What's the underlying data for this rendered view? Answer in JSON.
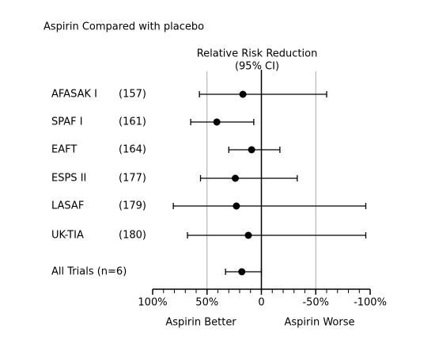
{
  "chart_data": {
    "type": "forest",
    "title": "Aspirin Compared with placebo",
    "axis_title": [
      "Relative Risk Reduction",
      "(95% CI)"
    ],
    "rows": [
      {
        "name": "AFASAK  I",
        "n": "(157)",
        "value": 17,
        "ci": [
          57,
          -60
        ]
      },
      {
        "name": "SPAF  I",
        "n": "(161)",
        "value": 41,
        "ci": [
          65,
          7
        ]
      },
      {
        "name": "EAFT",
        "n": "(164)",
        "value": 9,
        "ci": [
          30,
          -17
        ]
      },
      {
        "name": "ESPS II",
        "n": "(177)",
        "value": 24,
        "ci": [
          56,
          -33
        ]
      },
      {
        "name": "LASAF",
        "n": "(179)",
        "value": 23,
        "ci": [
          81,
          -96
        ]
      },
      {
        "name": "UK-TIA",
        "n": "(180)",
        "value": 12,
        "ci": [
          68,
          -96
        ]
      },
      {
        "name": "All Trials (n=6)",
        "value": 18,
        "ci": [
          33,
          0
        ]
      }
    ],
    "xlim": [
      100,
      -100
    ],
    "xticks": [
      {
        "value": 100,
        "label": "100%"
      },
      {
        "value": 50,
        "label": "50%"
      },
      {
        "value": 0,
        "label": "0"
      },
      {
        "value": -50,
        "label": "-50%"
      },
      {
        "value": -100,
        "label": "-100%"
      }
    ],
    "minor_xticks": [
      90,
      80,
      70,
      60,
      40,
      30,
      20,
      10,
      -10,
      -20,
      -30,
      -40,
      -60,
      -70,
      -80,
      -90
    ],
    "grid_at": [
      50,
      -50
    ],
    "x_labels": [
      "Aspirin Better",
      "Aspirin Worse"
    ],
    "color": "#000000",
    "grid_color": "#aaaaaa"
  }
}
